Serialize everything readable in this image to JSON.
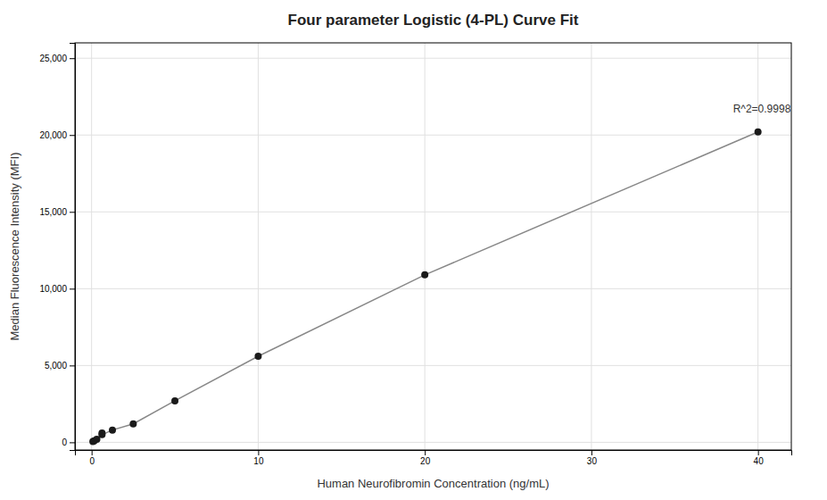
{
  "chart_data": {
    "type": "scatter",
    "title": "Four parameter Logistic (4-PL) Curve Fit",
    "xlabel": "Human Neurofibromin Concentration (ng/mL)",
    "ylabel": "Median Fluorescence Intensity (MFI)",
    "series": [
      {
        "type": "line",
        "color": "#888888",
        "x": [
          0.0,
          0.078,
          0.156,
          0.313,
          0.625,
          1.25,
          2.5,
          5.0,
          10.0,
          20.0,
          40.0
        ],
        "values": [
          0,
          50,
          100,
          200,
          500,
          800,
          1200,
          2700,
          5600,
          10900,
          20200
        ]
      },
      {
        "type": "scatter",
        "color": "#1a1a1a",
        "x": [
          0.078,
          0.156,
          0.313,
          0.625,
          0.625,
          1.25,
          2.5,
          5.0,
          10.0,
          20.0,
          40.0
        ],
        "values": [
          50,
          100,
          200,
          500,
          600,
          800,
          1200,
          2700,
          5600,
          10900,
          20200
        ]
      }
    ],
    "annotations": [
      {
        "text": "R^2=0.9998",
        "x": 38.5,
        "y": 21300
      }
    ],
    "xlim": [
      -1,
      42
    ],
    "ylim": [
      -500,
      26000
    ],
    "xticks": [
      0,
      10,
      20,
      30,
      40
    ],
    "yticks": [
      0,
      {
        "value": 5000,
        "label": "5,000"
      },
      {
        "value": 10000,
        "label": "10,000"
      },
      {
        "value": 15000,
        "label": "15,000"
      },
      {
        "value": 20000,
        "label": "20,000"
      },
      {
        "value": 25000,
        "label": "25,000"
      }
    ],
    "grid": true
  }
}
